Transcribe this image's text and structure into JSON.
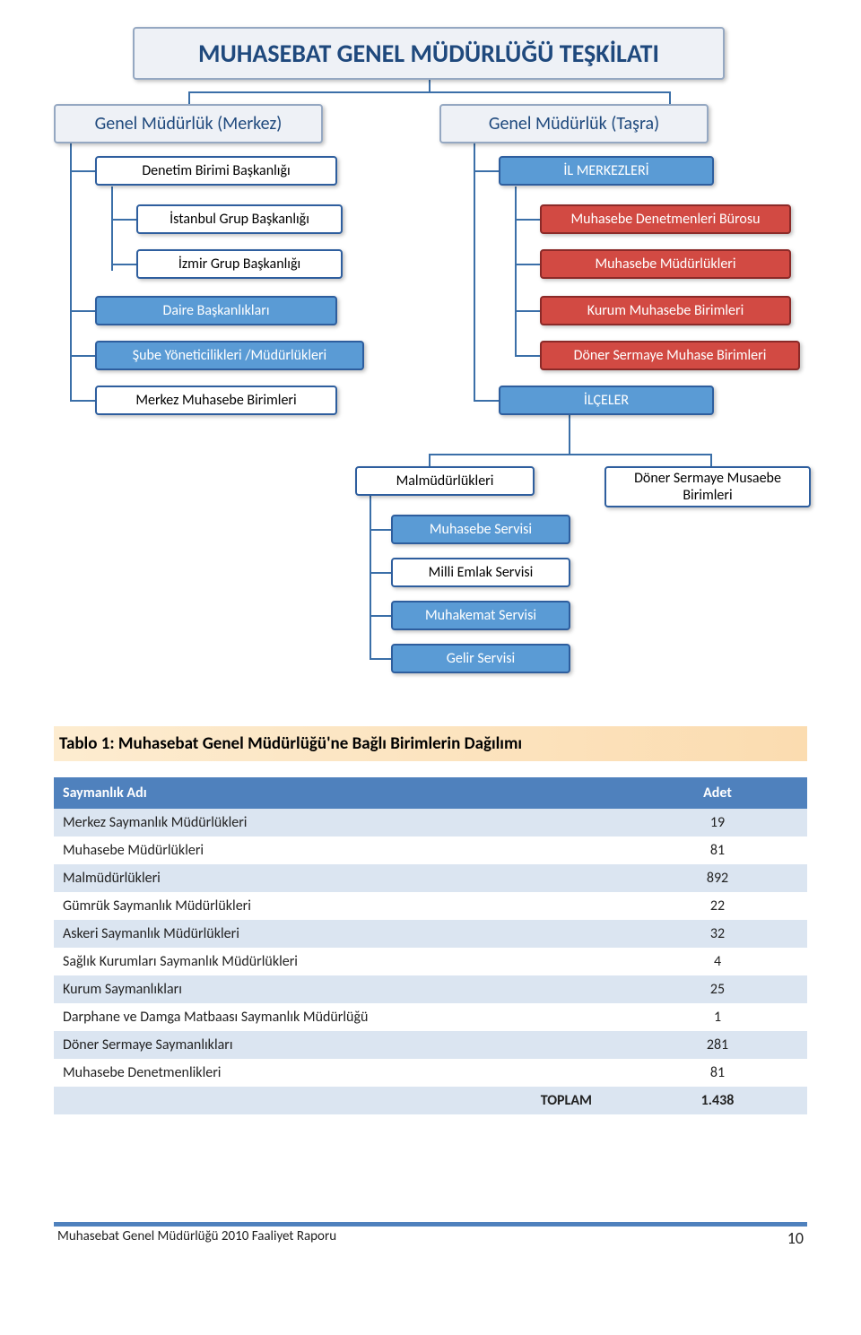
{
  "chart": {
    "colors": {
      "main_fill": "#eef1f6",
      "main_border": "#95a8c2",
      "main_text": "#1f497d",
      "blue_fill": "#5a9bd5",
      "blue_border": "#2e5e9e",
      "blue_text": "#ffffff",
      "white_fill": "#ffffff",
      "white_border": "#2e5e9e",
      "white_text": "#000000",
      "red_fill": "#d24a43",
      "red_border": "#8b2a28",
      "red_text": "#ffffff"
    },
    "title": "MUHASEBAT GENEL MÜDÜRLÜĞÜ TEŞKİLATI",
    "left_root": "Genel Müdürlük (Merkez)",
    "right_root": "Genel Müdürlük (Taşra)",
    "left_nodes": {
      "denetim": "Denetim Birimi Başkanlığı",
      "istanbul": "İstanbul Grup Başkanlığı",
      "izmir": "İzmir Grup Başkanlığı",
      "daire": "Daire Başkanlıkları",
      "sube": "Şube Yöneticilikleri /Müdürlükleri",
      "merkez": "Merkez Muhasebe Birimleri"
    },
    "right_nodes": {
      "il": "İL MERKEZLERİ",
      "burosu": "Muhasebe Denetmenleri Bürosu",
      "mudur": "Muhasebe Müdürlükleri",
      "kurum": "Kurum Muhasebe Birimleri",
      "doner1": "Döner Sermaye Muhase Birimleri",
      "ilceler": "İLÇELER",
      "malmud": "Malmüdürlükleri",
      "doner2_a": "Döner Sermaye Musaebe",
      "doner2_b": "Birimleri",
      "servis": {
        "muhasebe": "Muhasebe Servisi",
        "milli": "Milli Emlak Servisi",
        "muhakemat": "Muhakemat Servisi",
        "gelir": "Gelir Servisi"
      }
    }
  },
  "table": {
    "strip_bg": "#fdecd0",
    "strip_bg2": "#fbdcb0",
    "header_bg": "#4f81bd",
    "row_alt1": "#dbe5f1",
    "row_alt2": "#ffffff",
    "title": "Tablo 1: Muhasebat Genel Müdürlüğü'ne Bağlı Birimlerin Dağılımı",
    "col_name": "Saymanlık Adı",
    "col_count": "Adet",
    "rows": [
      {
        "name": "Merkez Saymanlık Müdürlükleri",
        "count": "19"
      },
      {
        "name": "Muhasebe Müdürlükleri",
        "count": "81"
      },
      {
        "name": "Malmüdürlükleri",
        "count": "892"
      },
      {
        "name": "Gümrük Saymanlık Müdürlükleri",
        "count": "22"
      },
      {
        "name": "Askeri Saymanlık Müdürlükleri",
        "count": "32"
      },
      {
        "name": "Sağlık Kurumları Saymanlık Müdürlükleri",
        "count": "4"
      },
      {
        "name": "Kurum Saymanlıkları",
        "count": "25"
      },
      {
        "name": "Darphane ve Damga Matbaası Saymanlık Müdürlüğü",
        "count": "1"
      },
      {
        "name": "Döner Sermaye Saymanlıkları",
        "count": "281"
      },
      {
        "name": "Muhasebe Denetmenlikleri",
        "count": "81"
      }
    ],
    "total_label": "TOPLAM",
    "total_value": "1.438"
  },
  "footer": {
    "text": "Muhasebat Genel Müdürlüğü 2010 Faaliyet Raporu",
    "page": "10"
  }
}
